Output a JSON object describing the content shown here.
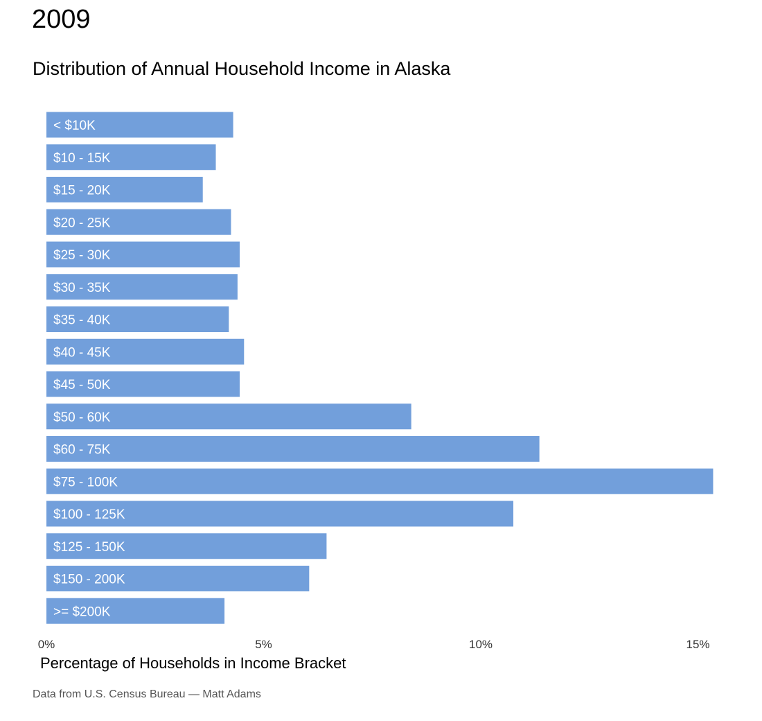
{
  "header": {
    "year": "2009",
    "subtitle": "Distribution of Annual Household Income in Alaska"
  },
  "footer": {
    "source": "Data from U.S. Census Bureau — Matt Adams"
  },
  "colors": {
    "bar": "#729fdb",
    "bar_label": "#ffffff"
  },
  "chart_data": {
    "type": "bar",
    "orientation": "horizontal",
    "title": "2009",
    "subtitle": "Distribution of Annual Household Income in Alaska",
    "xlabel": "Percentage of Households in Income Bracket",
    "ylabel": "",
    "xlim": [
      0,
      15.6
    ],
    "x_ticks": [
      0,
      5,
      10,
      15
    ],
    "x_tick_labels": [
      "0%",
      "5%",
      "10%",
      "15%"
    ],
    "grid": false,
    "legend": "none",
    "categories": [
      "< $10K",
      "$10 - 15K",
      "$15 - 20K",
      "$20 - 25K",
      "$25 - 30K",
      "$30 - 35K",
      "$35 - 40K",
      "$40 - 45K",
      "$45 - 50K",
      "$50 - 60K",
      "$60 - 75K",
      "$75 - 100K",
      "$100 - 125K",
      "$125 - 150K",
      "$150 - 200K",
      ">= $200K"
    ],
    "values": [
      4.3,
      3.9,
      3.6,
      4.25,
      4.45,
      4.4,
      4.2,
      4.55,
      4.45,
      8.4,
      11.35,
      15.35,
      10.75,
      6.45,
      6.05,
      4.1
    ]
  }
}
